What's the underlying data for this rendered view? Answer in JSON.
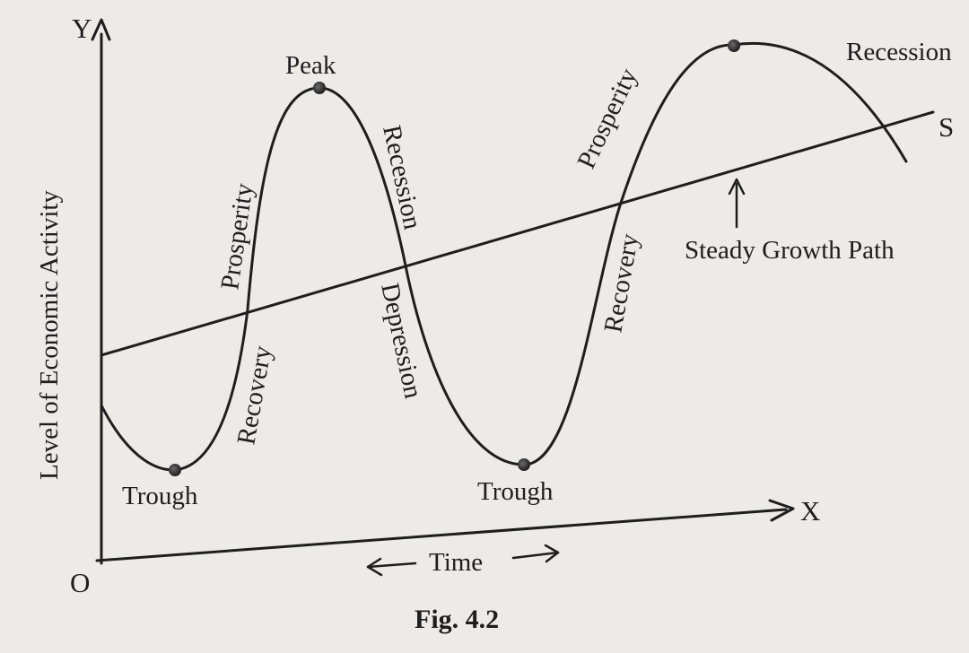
{
  "figure": {
    "y_axis_letter": "Y",
    "x_axis_letter": "X",
    "origin_letter": "O",
    "y_axis_label": "Level of Economic Activity",
    "time_label": "Time",
    "caption": "Fig. 4.2",
    "trend_line_letter": "S",
    "trend_line_label": "Steady Growth Path",
    "phases": {
      "trough_1": "Trough",
      "recovery_1": "Recovery",
      "prosperity_1": "Prosperity",
      "peak_1": "Peak",
      "recession_1": "Recession",
      "depression_1": "Depression",
      "trough_2": "Trough",
      "recovery_2": "Recovery",
      "prosperity_2": "Prosperity",
      "recession_2": "Recession"
    },
    "colors": {
      "ink": "#1e1e1e",
      "paper": "#ecebe7"
    }
  }
}
